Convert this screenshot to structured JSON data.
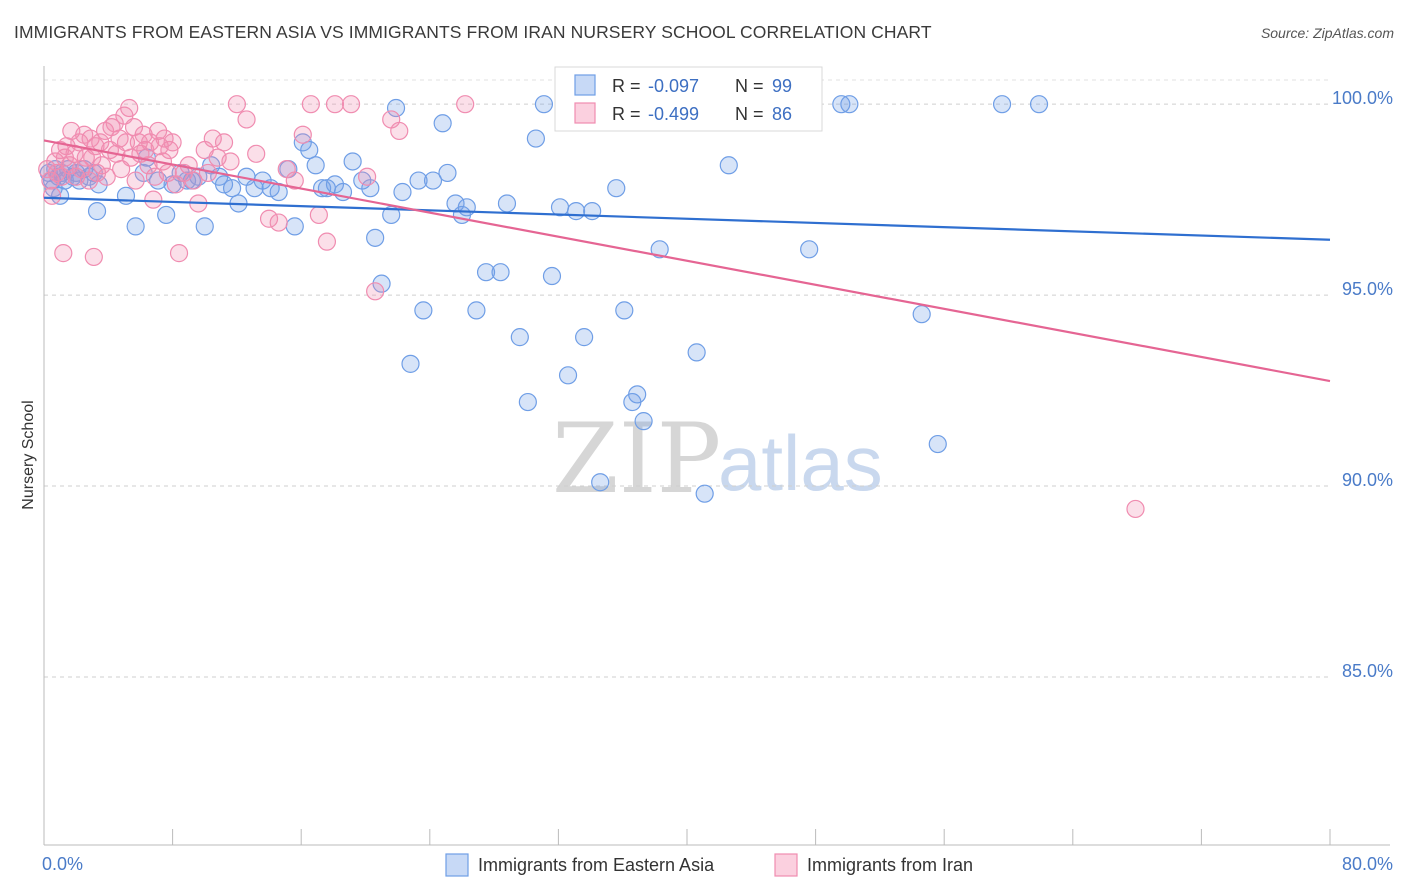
{
  "header": {
    "title": "IMMIGRANTS FROM EASTERN ASIA VS IMMIGRANTS FROM IRAN NURSERY SCHOOL CORRELATION CHART",
    "source": "Source: ZipAtlas.com"
  },
  "watermark": {
    "zip": "ZIP",
    "atlas": "atlas"
  },
  "colors": {
    "blue": "#6f9ee6",
    "pink": "#f08cb0",
    "blue_line": "#2f6fd0",
    "pink_line": "#e56593"
  },
  "legend": {
    "rows": [
      {
        "r_label": "R = ",
        "r_value": "-0.097",
        "n_label": "N = ",
        "n_value": "99"
      },
      {
        "r_label": "R = ",
        "r_value": "-0.499",
        "n_label": "N = ",
        "n_value": "86"
      }
    ]
  },
  "chart_data": {
    "type": "scatter",
    "title": "IMMIGRANTS FROM EASTERN ASIA VS IMMIGRANTS FROM IRAN NURSERY SCHOOL CORRELATION CHART",
    "xlabel": "",
    "ylabel": "Nursery School",
    "xlim": [
      0,
      80
    ],
    "ylim": [
      80.6,
      101.0
    ],
    "x_tick_labels": [
      "0.0%",
      "80.0%"
    ],
    "y_ticks": [
      85,
      90,
      95,
      100
    ],
    "y_tick_labels": [
      "85.0%",
      "90.0%",
      "95.0%",
      "100.0%"
    ],
    "grid": true,
    "legend_position": "top-center",
    "series": [
      {
        "name": "Immigrants from Eastern Asia",
        "color": "#6f9ee6",
        "trend": {
          "x": [
            0,
            80
          ],
          "y": [
            97.55,
            96.45
          ]
        },
        "points": [
          [
            0.3,
            98.2
          ],
          [
            0.5,
            98.0
          ],
          [
            0.7,
            98.3
          ],
          [
            0.9,
            98.1
          ],
          [
            1.1,
            98.2
          ],
          [
            1.3,
            98.0
          ],
          [
            1.5,
            98.3
          ],
          [
            1.8,
            98.1
          ],
          [
            2.0,
            98.2
          ],
          [
            2.2,
            98.0
          ],
          [
            2.5,
            98.3
          ],
          [
            2.8,
            98.1
          ],
          [
            3.1,
            98.2
          ],
          [
            3.4,
            97.9
          ],
          [
            0.6,
            97.8
          ],
          [
            1.0,
            97.6
          ],
          [
            3.3,
            97.2
          ],
          [
            5.1,
            97.6
          ],
          [
            5.7,
            96.8
          ],
          [
            6.4,
            98.6
          ],
          [
            6.2,
            98.2
          ],
          [
            7.1,
            98.0
          ],
          [
            7.6,
            97.1
          ],
          [
            8.0,
            97.9
          ],
          [
            8.5,
            98.2
          ],
          [
            8.9,
            98.0
          ],
          [
            9.2,
            98.0
          ],
          [
            9.6,
            98.1
          ],
          [
            10.0,
            96.8
          ],
          [
            10.4,
            98.4
          ],
          [
            10.9,
            98.1
          ],
          [
            11.2,
            97.9
          ],
          [
            11.7,
            97.8
          ],
          [
            12.1,
            97.4
          ],
          [
            12.6,
            98.1
          ],
          [
            13.1,
            97.8
          ],
          [
            13.6,
            98.0
          ],
          [
            14.1,
            97.8
          ],
          [
            14.6,
            97.7
          ],
          [
            15.2,
            98.3
          ],
          [
            15.6,
            96.8
          ],
          [
            16.1,
            99.0
          ],
          [
            16.5,
            98.8
          ],
          [
            16.9,
            98.4
          ],
          [
            17.3,
            97.8
          ],
          [
            17.6,
            97.8
          ],
          [
            18.1,
            97.9
          ],
          [
            18.6,
            97.7
          ],
          [
            19.2,
            98.5
          ],
          [
            19.8,
            98.0
          ],
          [
            20.3,
            97.8
          ],
          [
            20.6,
            96.5
          ],
          [
            21.0,
            95.3
          ],
          [
            21.6,
            97.1
          ],
          [
            21.9,
            99.9
          ],
          [
            22.3,
            97.7
          ],
          [
            22.8,
            93.2
          ],
          [
            23.3,
            98.0
          ],
          [
            23.6,
            94.6
          ],
          [
            24.2,
            98.0
          ],
          [
            24.8,
            99.5
          ],
          [
            25.1,
            98.2
          ],
          [
            25.6,
            97.4
          ],
          [
            26.0,
            97.1
          ],
          [
            26.3,
            97.3
          ],
          [
            26.9,
            94.6
          ],
          [
            27.5,
            95.6
          ],
          [
            28.4,
            95.6
          ],
          [
            28.8,
            97.4
          ],
          [
            29.6,
            93.9
          ],
          [
            30.1,
            92.2
          ],
          [
            30.6,
            99.1
          ],
          [
            31.1,
            100.0
          ],
          [
            31.6,
            95.5
          ],
          [
            32.1,
            97.3
          ],
          [
            32.6,
            92.9
          ],
          [
            33.1,
            97.2
          ],
          [
            33.6,
            93.9
          ],
          [
            34.1,
            97.2
          ],
          [
            34.6,
            90.1
          ],
          [
            35.6,
            97.8
          ],
          [
            36.1,
            94.6
          ],
          [
            36.6,
            92.2
          ],
          [
            36.9,
            92.4
          ],
          [
            37.3,
            91.7
          ],
          [
            38.3,
            96.2
          ],
          [
            39.1,
            100.0
          ],
          [
            40.6,
            93.5
          ],
          [
            41.1,
            89.8
          ],
          [
            41.6,
            100.0
          ],
          [
            42.6,
            98.4
          ],
          [
            44.6,
            100.0
          ],
          [
            47.6,
            96.2
          ],
          [
            49.6,
            100.0
          ],
          [
            50.1,
            100.0
          ],
          [
            54.6,
            94.5
          ],
          [
            55.6,
            91.1
          ],
          [
            59.6,
            100.0
          ],
          [
            61.9,
            100.0
          ]
        ]
      },
      {
        "name": "Immigrants from Iran",
        "color": "#f08cb0",
        "trend": {
          "x": [
            0,
            80
          ],
          "y": [
            99.05,
            92.75
          ]
        },
        "points": [
          [
            0.2,
            98.3
          ],
          [
            0.4,
            98.0
          ],
          [
            0.5,
            97.6
          ],
          [
            0.7,
            98.5
          ],
          [
            0.8,
            98.2
          ],
          [
            1.0,
            98.8
          ],
          [
            1.1,
            98.1
          ],
          [
            1.3,
            98.6
          ],
          [
            1.4,
            98.9
          ],
          [
            1.6,
            98.4
          ],
          [
            1.7,
            99.3
          ],
          [
            1.9,
            98.7
          ],
          [
            2.0,
            98.1
          ],
          [
            2.2,
            99.0
          ],
          [
            2.3,
            98.3
          ],
          [
            2.5,
            99.2
          ],
          [
            2.6,
            98.6
          ],
          [
            2.8,
            98.0
          ],
          [
            2.9,
            99.1
          ],
          [
            3.0,
            98.6
          ],
          [
            3.2,
            98.9
          ],
          [
            3.3,
            98.2
          ],
          [
            3.5,
            99.0
          ],
          [
            3.6,
            98.4
          ],
          [
            3.8,
            99.3
          ],
          [
            3.9,
            98.1
          ],
          [
            4.1,
            98.8
          ],
          [
            4.2,
            99.4
          ],
          [
            4.4,
            99.5
          ],
          [
            4.5,
            98.7
          ],
          [
            4.7,
            99.1
          ],
          [
            4.8,
            98.3
          ],
          [
            5.0,
            99.7
          ],
          [
            5.1,
            99.0
          ],
          [
            5.3,
            99.9
          ],
          [
            5.4,
            98.6
          ],
          [
            5.6,
            99.4
          ],
          [
            5.7,
            98.0
          ],
          [
            5.9,
            99.0
          ],
          [
            6.0,
            98.7
          ],
          [
            6.2,
            99.2
          ],
          [
            6.3,
            98.8
          ],
          [
            6.5,
            98.4
          ],
          [
            6.6,
            99.0
          ],
          [
            6.8,
            97.5
          ],
          [
            6.9,
            98.1
          ],
          [
            7.1,
            99.3
          ],
          [
            7.2,
            98.9
          ],
          [
            7.4,
            98.5
          ],
          [
            7.5,
            99.1
          ],
          [
            7.7,
            98.2
          ],
          [
            7.8,
            98.8
          ],
          [
            8.0,
            99.0
          ],
          [
            8.2,
            97.9
          ],
          [
            8.4,
            96.1
          ],
          [
            8.7,
            98.2
          ],
          [
            9.0,
            98.4
          ],
          [
            9.3,
            98.0
          ],
          [
            9.6,
            97.4
          ],
          [
            10.0,
            98.8
          ],
          [
            10.2,
            98.2
          ],
          [
            10.5,
            99.1
          ],
          [
            10.8,
            98.6
          ],
          [
            11.2,
            99.0
          ],
          [
            11.6,
            98.5
          ],
          [
            12.0,
            100.0
          ],
          [
            12.6,
            99.6
          ],
          [
            13.2,
            98.7
          ],
          [
            14.0,
            97.0
          ],
          [
            14.6,
            96.9
          ],
          [
            15.1,
            98.3
          ],
          [
            15.6,
            98.0
          ],
          [
            16.1,
            99.2
          ],
          [
            16.6,
            100.0
          ],
          [
            17.1,
            97.1
          ],
          [
            17.6,
            96.4
          ],
          [
            18.1,
            100.0
          ],
          [
            19.1,
            100.0
          ],
          [
            20.1,
            98.1
          ],
          [
            20.6,
            95.1
          ],
          [
            21.6,
            99.6
          ],
          [
            22.1,
            99.3
          ],
          [
            1.2,
            96.1
          ],
          [
            3.1,
            96.0
          ],
          [
            26.2,
            100.0
          ],
          [
            67.9,
            89.4
          ]
        ]
      }
    ]
  }
}
